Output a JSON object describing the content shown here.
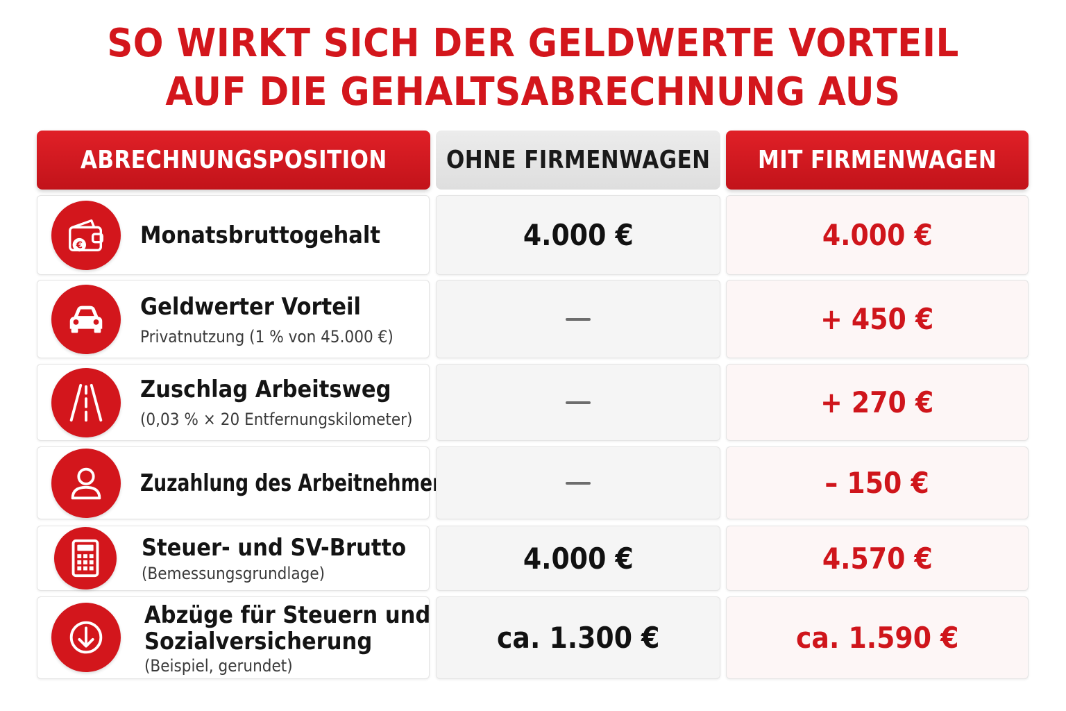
{
  "title": {
    "line1": "SO WIRKT SICH DER GELDWERTE VORTEIL",
    "line2": "AUF DIE GEHALTSABRECHNUNG AUS"
  },
  "headers": {
    "position": "ABRECHNUNGSPOSITION",
    "ohne": "OHNE FIRMENWAGEN",
    "mit": "MIT FIRMENWAGEN"
  },
  "colors": {
    "accent_red": "#d3161c",
    "header_grey": "#e4e4e4"
  },
  "rows": [
    {
      "icon": "wallet-euro-icon",
      "label": "Monatsbruttogehalt",
      "sublabel": "",
      "ohne": "4.000 €",
      "mit": "4.000 €"
    },
    {
      "icon": "car-icon",
      "label": "Geldwerter Vorteil",
      "sublabel": "Privatnutzung (1 % von 45.000 €)",
      "ohne": "—",
      "mit": "+ 450 €"
    },
    {
      "icon": "road-icon",
      "label": "Zuschlag Arbeitsweg",
      "sublabel": "(0,03 % × 20 Entfernungskilometer)",
      "ohne": "—",
      "mit": "+ 270 €"
    },
    {
      "icon": "person-icon",
      "label": "Zuzahlung des Arbeitnehmers",
      "sublabel": "",
      "ohne": "—",
      "mit": "– 150 €"
    },
    {
      "icon": "calculator-icon",
      "label": "Steuer- und SV-Brutto",
      "sublabel": "(Bemessungsgrundlage)",
      "ohne": "4.000 €",
      "mit": "4.570 €"
    },
    {
      "icon": "arrow-down-circle-icon",
      "label": "Abzüge für Steuern und",
      "label2": "Sozialversicherung",
      "sublabel": "(Beispiel, gerundet)",
      "ohne": "ca. 1.300 €",
      "mit": "ca. 1.590 €"
    }
  ]
}
